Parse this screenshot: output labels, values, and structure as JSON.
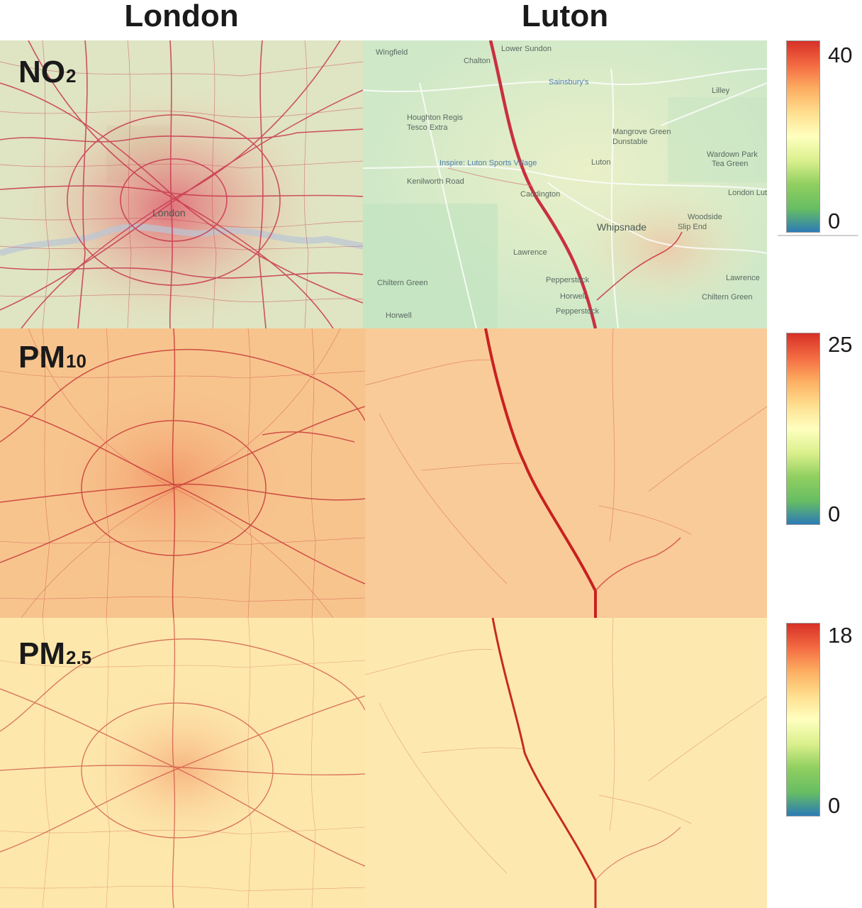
{
  "columns": {
    "london": "London",
    "luton": "Luton"
  },
  "rows": [
    {
      "key": "no2",
      "main": "NO",
      "sub": "2",
      "scale_max": "40",
      "scale_min": "0"
    },
    {
      "key": "pm10",
      "main": "PM",
      "sub": "10",
      "scale_max": "25",
      "scale_min": "0"
    },
    {
      "key": "pm25",
      "main": "PM",
      "sub": "2.5",
      "scale_max": "18",
      "scale_min": "0"
    }
  ],
  "colorbar_colors": [
    "#d73027",
    "#f46d43",
    "#fdae61",
    "#fee090",
    "#ffffbf",
    "#d9ef8b",
    "#91cf60",
    "#66bd63",
    "#2c7bb6"
  ],
  "map_labels": {
    "london_center": "London",
    "luton_places": [
      "Wingfield",
      "Lower Sundon",
      "Chalton",
      "Sainsbury's",
      "Lilley",
      "Houghton Regis",
      "Tesco Extra",
      "Inspire: Luton Sports Village",
      "Mangrove Green",
      "Dunstable",
      "Wardown Park",
      "Tea Green",
      "Kenilworth Road",
      "Luton",
      "London Luton Airport",
      "Caddington",
      "Whipsnade",
      "Woodside",
      "Slip End",
      "Lawrence",
      "Chiltern Green",
      "Pepperstock",
      "Horwell"
    ]
  }
}
